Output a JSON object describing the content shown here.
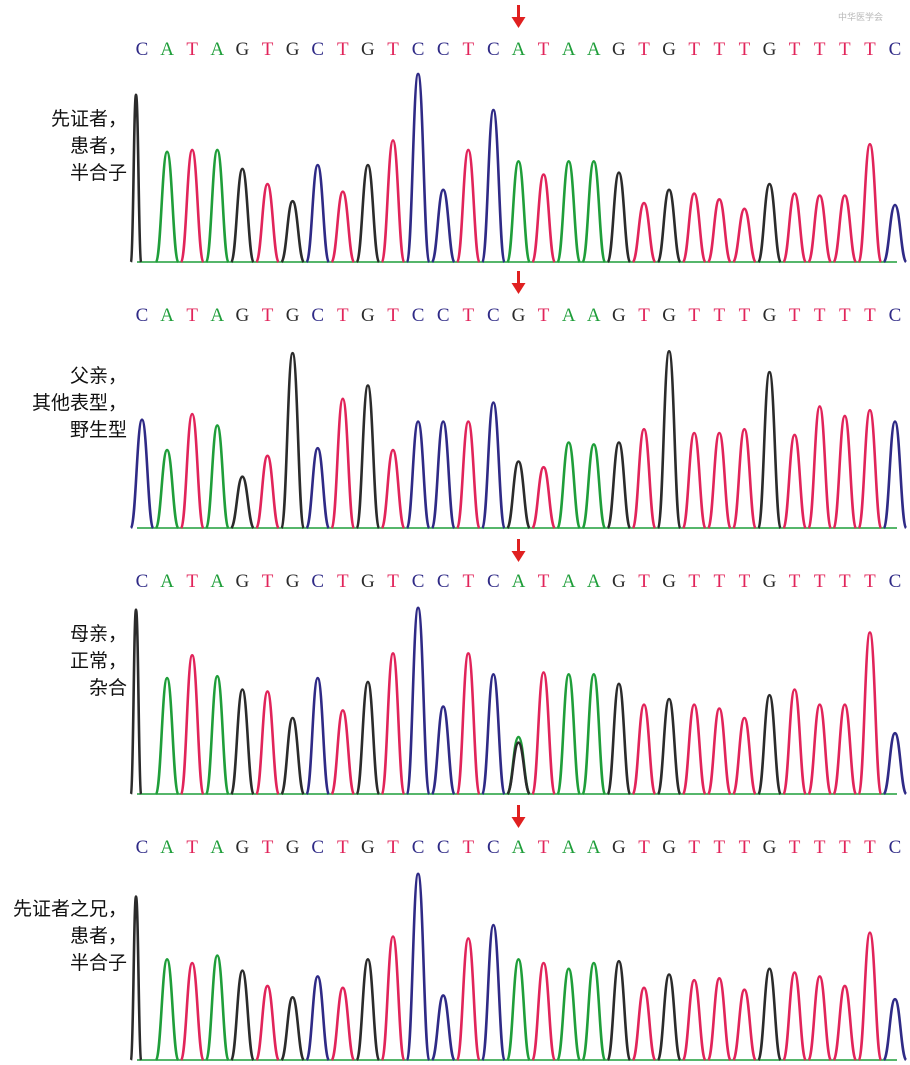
{
  "watermark": "中华医学会",
  "colors": {
    "A": "#1f9e3a",
    "T": "#e1245a",
    "G": "#2b2b2b",
    "C": "#2f2a86",
    "arrow": "#e02020",
    "baseline": "#1f9e3a"
  },
  "panels": [
    {
      "label": [
        "先证者，",
        "患者，",
        "半合子"
      ],
      "sequence": "CATAGTGCTGTCCTCATAAGTGTTTGTTTTC",
      "variant_index": 15,
      "start": 62,
      "end": 158,
      "peaks": [
        {
          "base": "G",
          "x": 0.0,
          "h": 0.88,
          "w": 5
        },
        {
          "base": "A",
          "x": 1.0,
          "h": 0.58,
          "w": 11
        },
        {
          "base": "T",
          "x": 2.0,
          "h": 0.59,
          "w": 11
        },
        {
          "base": "A",
          "x": 3.0,
          "h": 0.59,
          "w": 11
        },
        {
          "base": "G",
          "x": 4.0,
          "h": 0.49,
          "w": 11
        },
        {
          "base": "T",
          "x": 5.0,
          "h": 0.41,
          "w": 11
        },
        {
          "base": "G",
          "x": 6.0,
          "h": 0.32,
          "w": 11
        },
        {
          "base": "C",
          "x": 7.0,
          "h": 0.51,
          "w": 11
        },
        {
          "base": "T",
          "x": 8.0,
          "h": 0.37,
          "w": 11
        },
        {
          "base": "G",
          "x": 9.0,
          "h": 0.51,
          "w": 11
        },
        {
          "base": "T",
          "x": 10.0,
          "h": 0.64,
          "w": 11
        },
        {
          "base": "C",
          "x": 11.0,
          "h": 0.99,
          "w": 11
        },
        {
          "base": "C",
          "x": 12.0,
          "h": 0.38,
          "w": 11
        },
        {
          "base": "T",
          "x": 13.0,
          "h": 0.59,
          "w": 11
        },
        {
          "base": "C",
          "x": 14.0,
          "h": 0.8,
          "w": 11
        },
        {
          "base": "A",
          "x": 15.0,
          "h": 0.53,
          "w": 11
        },
        {
          "base": "T",
          "x": 16.0,
          "h": 0.46,
          "w": 11
        },
        {
          "base": "A",
          "x": 17.0,
          "h": 0.53,
          "w": 11
        },
        {
          "base": "A",
          "x": 18.0,
          "h": 0.53,
          "w": 11
        },
        {
          "base": "G",
          "x": 19.0,
          "h": 0.47,
          "w": 11
        },
        {
          "base": "T",
          "x": 20.0,
          "h": 0.31,
          "w": 11
        },
        {
          "base": "G",
          "x": 21.0,
          "h": 0.38,
          "w": 11
        },
        {
          "base": "T",
          "x": 22.0,
          "h": 0.36,
          "w": 11
        },
        {
          "base": "T",
          "x": 23.0,
          "h": 0.33,
          "w": 11
        },
        {
          "base": "T",
          "x": 24.0,
          "h": 0.28,
          "w": 11
        },
        {
          "base": "G",
          "x": 25.0,
          "h": 0.41,
          "w": 11
        },
        {
          "base": "T",
          "x": 26.0,
          "h": 0.36,
          "w": 11
        },
        {
          "base": "T",
          "x": 27.0,
          "h": 0.35,
          "w": 11
        },
        {
          "base": "T",
          "x": 28.0,
          "h": 0.35,
          "w": 11
        },
        {
          "base": "T",
          "x": 29.0,
          "h": 0.62,
          "w": 11
        },
        {
          "base": "C",
          "x": 30.0,
          "h": 0.3,
          "w": 11
        }
      ]
    },
    {
      "label": [
        "父亲，",
        "其他表型，",
        "野生型"
      ],
      "sequence": "CATAGTGCTGTCCTCGTAAGTGTTTGTTTTC",
      "variant_index": 15,
      "start": 326,
      "end": 424,
      "peaks": [
        {
          "base": "C",
          "x": 0.0,
          "h": 0.57,
          "w": 11
        },
        {
          "base": "A",
          "x": 1.0,
          "h": 0.41,
          "w": 11
        },
        {
          "base": "T",
          "x": 2.0,
          "h": 0.6,
          "w": 11
        },
        {
          "base": "A",
          "x": 3.0,
          "h": 0.54,
          "w": 11
        },
        {
          "base": "G",
          "x": 4.0,
          "h": 0.27,
          "w": 11
        },
        {
          "base": "T",
          "x": 5.0,
          "h": 0.38,
          "w": 11
        },
        {
          "base": "G",
          "x": 6.0,
          "h": 0.92,
          "w": 11
        },
        {
          "base": "C",
          "x": 7.0,
          "h": 0.42,
          "w": 11
        },
        {
          "base": "T",
          "x": 8.0,
          "h": 0.68,
          "w": 11
        },
        {
          "base": "G",
          "x": 9.0,
          "h": 0.75,
          "w": 11
        },
        {
          "base": "T",
          "x": 10.0,
          "h": 0.41,
          "w": 11
        },
        {
          "base": "C",
          "x": 11.0,
          "h": 0.56,
          "w": 11
        },
        {
          "base": "C",
          "x": 12.0,
          "h": 0.56,
          "w": 11
        },
        {
          "base": "T",
          "x": 13.0,
          "h": 0.56,
          "w": 11
        },
        {
          "base": "C",
          "x": 14.0,
          "h": 0.66,
          "w": 11
        },
        {
          "base": "G",
          "x": 15.0,
          "h": 0.35,
          "w": 11
        },
        {
          "base": "T",
          "x": 16.0,
          "h": 0.32,
          "w": 11
        },
        {
          "base": "A",
          "x": 17.0,
          "h": 0.45,
          "w": 11
        },
        {
          "base": "A",
          "x": 18.0,
          "h": 0.44,
          "w": 11
        },
        {
          "base": "G",
          "x": 19.0,
          "h": 0.45,
          "w": 11
        },
        {
          "base": "T",
          "x": 20.0,
          "h": 0.52,
          "w": 11
        },
        {
          "base": "G",
          "x": 21.0,
          "h": 0.93,
          "w": 11
        },
        {
          "base": "T",
          "x": 22.0,
          "h": 0.5,
          "w": 11
        },
        {
          "base": "T",
          "x": 23.0,
          "h": 0.5,
          "w": 11
        },
        {
          "base": "T",
          "x": 24.0,
          "h": 0.52,
          "w": 11
        },
        {
          "base": "G",
          "x": 25.0,
          "h": 0.82,
          "w": 11
        },
        {
          "base": "T",
          "x": 26.0,
          "h": 0.49,
          "w": 11
        },
        {
          "base": "T",
          "x": 27.0,
          "h": 0.64,
          "w": 11
        },
        {
          "base": "T",
          "x": 28.0,
          "h": 0.59,
          "w": 11
        },
        {
          "base": "T",
          "x": 29.0,
          "h": 0.62,
          "w": 11
        },
        {
          "base": "C",
          "x": 30.0,
          "h": 0.56,
          "w": 11
        }
      ]
    },
    {
      "label": [
        "母亲，",
        "正常，",
        "杂合"
      ],
      "sequence": "CATAGTGCTGTCCTCATAAGTGTTTGTTTTC",
      "variant_index": 15,
      "start": 592,
      "end": 690,
      "peaks": [
        {
          "base": "G",
          "x": 0.0,
          "h": 0.97,
          "w": 5
        },
        {
          "base": "A",
          "x": 1.0,
          "h": 0.61,
          "w": 11
        },
        {
          "base": "T",
          "x": 2.0,
          "h": 0.73,
          "w": 11
        },
        {
          "base": "A",
          "x": 3.0,
          "h": 0.62,
          "w": 11
        },
        {
          "base": "G",
          "x": 4.0,
          "h": 0.55,
          "w": 11
        },
        {
          "base": "T",
          "x": 5.0,
          "h": 0.54,
          "w": 11
        },
        {
          "base": "G",
          "x": 6.0,
          "h": 0.4,
          "w": 11
        },
        {
          "base": "C",
          "x": 7.0,
          "h": 0.61,
          "w": 11
        },
        {
          "base": "T",
          "x": 8.0,
          "h": 0.44,
          "w": 11
        },
        {
          "base": "G",
          "x": 9.0,
          "h": 0.59,
          "w": 11
        },
        {
          "base": "T",
          "x": 10.0,
          "h": 0.74,
          "w": 11
        },
        {
          "base": "C",
          "x": 11.0,
          "h": 0.98,
          "w": 11
        },
        {
          "base": "C",
          "x": 12.0,
          "h": 0.46,
          "w": 11
        },
        {
          "base": "T",
          "x": 13.0,
          "h": 0.74,
          "w": 11
        },
        {
          "base": "C",
          "x": 14.0,
          "h": 0.63,
          "w": 11
        },
        {
          "base": "A",
          "x": 15.0,
          "h": 0.3,
          "w": 11
        },
        {
          "base": "G",
          "x": 15.0,
          "h": 0.27,
          "w": 11
        },
        {
          "base": "T",
          "x": 16.0,
          "h": 0.64,
          "w": 11
        },
        {
          "base": "A",
          "x": 17.0,
          "h": 0.63,
          "w": 11
        },
        {
          "base": "A",
          "x": 18.0,
          "h": 0.63,
          "w": 11
        },
        {
          "base": "G",
          "x": 19.0,
          "h": 0.58,
          "w": 11
        },
        {
          "base": "T",
          "x": 20.0,
          "h": 0.47,
          "w": 11
        },
        {
          "base": "G",
          "x": 21.0,
          "h": 0.5,
          "w": 11
        },
        {
          "base": "T",
          "x": 22.0,
          "h": 0.47,
          "w": 11
        },
        {
          "base": "T",
          "x": 23.0,
          "h": 0.45,
          "w": 11
        },
        {
          "base": "T",
          "x": 24.0,
          "h": 0.4,
          "w": 11
        },
        {
          "base": "G",
          "x": 25.0,
          "h": 0.52,
          "w": 11
        },
        {
          "base": "T",
          "x": 26.0,
          "h": 0.55,
          "w": 11
        },
        {
          "base": "T",
          "x": 27.0,
          "h": 0.47,
          "w": 11
        },
        {
          "base": "T",
          "x": 28.0,
          "h": 0.47,
          "w": 11
        },
        {
          "base": "T",
          "x": 29.0,
          "h": 0.85,
          "w": 11
        },
        {
          "base": "C",
          "x": 30.0,
          "h": 0.32,
          "w": 11
        }
      ]
    },
    {
      "label": [
        "先证者之兄，",
        "患者，",
        "半合子"
      ],
      "sequence": "CATAGTGCTGTCCTCATAAGTGTTTGTTTTC",
      "variant_index": 15,
      "start": 858,
      "end": 956,
      "peaks": [
        {
          "base": "G",
          "x": 0.0,
          "h": 0.86,
          "w": 5
        },
        {
          "base": "A",
          "x": 1.0,
          "h": 0.53,
          "w": 11
        },
        {
          "base": "T",
          "x": 2.0,
          "h": 0.51,
          "w": 11
        },
        {
          "base": "A",
          "x": 3.0,
          "h": 0.55,
          "w": 11
        },
        {
          "base": "G",
          "x": 4.0,
          "h": 0.47,
          "w": 11
        },
        {
          "base": "T",
          "x": 5.0,
          "h": 0.39,
          "w": 11
        },
        {
          "base": "G",
          "x": 6.0,
          "h": 0.33,
          "w": 11
        },
        {
          "base": "C",
          "x": 7.0,
          "h": 0.44,
          "w": 11
        },
        {
          "base": "T",
          "x": 8.0,
          "h": 0.38,
          "w": 11
        },
        {
          "base": "G",
          "x": 9.0,
          "h": 0.53,
          "w": 11
        },
        {
          "base": "T",
          "x": 10.0,
          "h": 0.65,
          "w": 11
        },
        {
          "base": "C",
          "x": 11.0,
          "h": 0.98,
          "w": 11
        },
        {
          "base": "C",
          "x": 12.0,
          "h": 0.34,
          "w": 11
        },
        {
          "base": "T",
          "x": 13.0,
          "h": 0.64,
          "w": 11
        },
        {
          "base": "C",
          "x": 14.0,
          "h": 0.71,
          "w": 11
        },
        {
          "base": "A",
          "x": 15.0,
          "h": 0.53,
          "w": 11
        },
        {
          "base": "T",
          "x": 16.0,
          "h": 0.51,
          "w": 11
        },
        {
          "base": "A",
          "x": 17.0,
          "h": 0.48,
          "w": 11
        },
        {
          "base": "A",
          "x": 18.0,
          "h": 0.51,
          "w": 11
        },
        {
          "base": "G",
          "x": 19.0,
          "h": 0.52,
          "w": 11
        },
        {
          "base": "T",
          "x": 20.0,
          "h": 0.38,
          "w": 11
        },
        {
          "base": "G",
          "x": 21.0,
          "h": 0.45,
          "w": 11
        },
        {
          "base": "T",
          "x": 22.0,
          "h": 0.42,
          "w": 11
        },
        {
          "base": "T",
          "x": 23.0,
          "h": 0.43,
          "w": 11
        },
        {
          "base": "T",
          "x": 24.0,
          "h": 0.37,
          "w": 11
        },
        {
          "base": "G",
          "x": 25.0,
          "h": 0.48,
          "w": 11
        },
        {
          "base": "T",
          "x": 26.0,
          "h": 0.46,
          "w": 11
        },
        {
          "base": "T",
          "x": 27.0,
          "h": 0.44,
          "w": 11
        },
        {
          "base": "T",
          "x": 28.0,
          "h": 0.39,
          "w": 11
        },
        {
          "base": "T",
          "x": 29.0,
          "h": 0.67,
          "w": 11
        },
        {
          "base": "C",
          "x": 30.0,
          "h": 0.32,
          "w": 11
        }
      ]
    }
  ]
}
